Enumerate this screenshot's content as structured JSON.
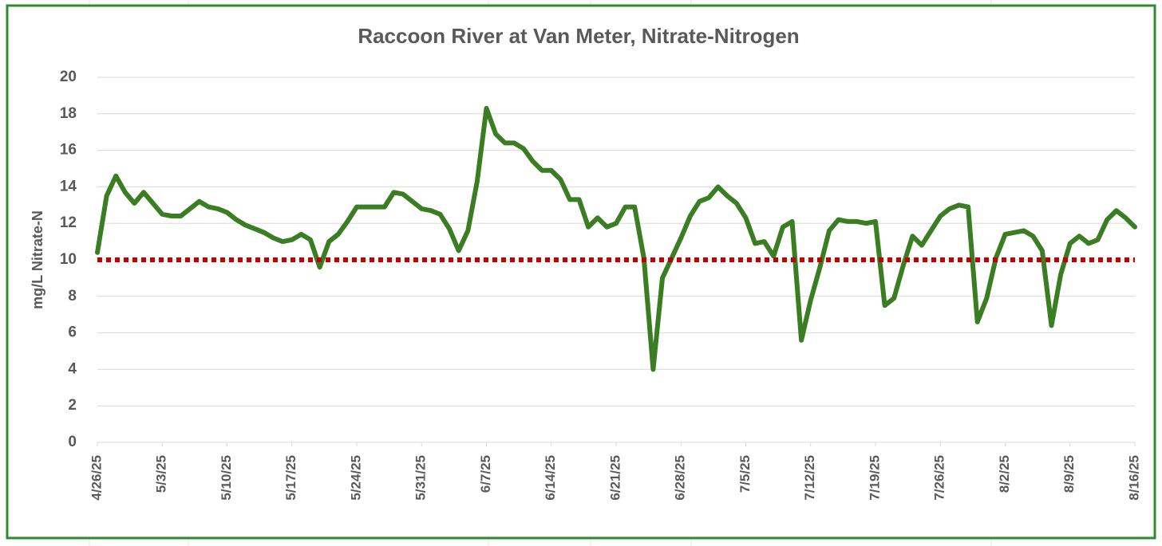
{
  "chart_data": {
    "type": "line",
    "title": "Raccoon River at Van Meter, Nitrate-Nitrogen",
    "y_label": "mg/L Nitrate-N",
    "x": [
      "4/26/25",
      "4/27/25",
      "4/28/25",
      "4/29/25",
      "4/30/25",
      "5/1/25",
      "5/2/25",
      "5/3/25",
      "5/4/25",
      "5/5/25",
      "5/6/25",
      "5/7/25",
      "5/8/25",
      "5/9/25",
      "5/10/25",
      "5/11/25",
      "5/12/25",
      "5/13/25",
      "5/14/25",
      "5/15/25",
      "5/16/25",
      "5/17/25",
      "5/18/25",
      "5/19/25",
      "5/20/25",
      "5/21/25",
      "5/22/25",
      "5/23/25",
      "5/24/25",
      "5/25/25",
      "5/26/25",
      "5/27/25",
      "5/28/25",
      "5/29/25",
      "5/30/25",
      "5/31/25",
      "6/1/25",
      "6/2/25",
      "6/3/25",
      "6/4/25",
      "6/5/25",
      "6/6/25",
      "6/7/25",
      "6/8/25",
      "6/9/25",
      "6/10/25",
      "6/11/25",
      "6/12/25",
      "6/13/25",
      "6/14/25",
      "6/15/25",
      "6/16/25",
      "6/17/25",
      "6/18/25",
      "6/19/25",
      "6/20/25",
      "6/21/25",
      "6/22/25",
      "6/23/25",
      "6/24/25",
      "6/25/25",
      "6/26/25",
      "6/27/25",
      "6/28/25",
      "6/29/25",
      "6/30/25",
      "7/1/25",
      "7/2/25",
      "7/3/25",
      "7/4/25",
      "7/5/25",
      "7/6/25",
      "7/7/25",
      "7/8/25",
      "7/9/25",
      "7/10/25",
      "7/11/25",
      "7/12/25",
      "7/13/25",
      "7/14/25",
      "7/15/25",
      "7/16/25",
      "7/17/25",
      "7/18/25",
      "7/19/25",
      "7/20/25",
      "7/21/25",
      "7/22/25",
      "7/23/25",
      "7/24/25",
      "7/25/25",
      "7/26/25",
      "7/27/25",
      "7/28/25",
      "7/29/25",
      "7/30/25",
      "7/31/25",
      "8/1/25",
      "8/2/25",
      "8/3/25",
      "8/4/25",
      "8/5/25",
      "8/6/25",
      "8/7/25",
      "8/8/25",
      "8/9/25",
      "8/10/25",
      "8/11/25",
      "8/12/25",
      "8/13/25",
      "8/14/25",
      "8/15/25",
      "8/16/25"
    ],
    "series": [
      {
        "name": "Nitrate-N",
        "color": "#3a7d22",
        "values": [
          10.4,
          13.5,
          14.6,
          13.7,
          13.1,
          13.7,
          13.1,
          12.5,
          12.4,
          12.4,
          12.8,
          13.2,
          12.9,
          12.8,
          12.6,
          12.2,
          11.9,
          11.7,
          11.5,
          11.2,
          11.0,
          11.1,
          11.4,
          11.1,
          9.6,
          11.0,
          11.4,
          12.1,
          12.9,
          12.9,
          12.9,
          12.9,
          13.7,
          13.6,
          13.2,
          12.8,
          12.7,
          12.5,
          11.7,
          10.5,
          11.6,
          14.3,
          18.3,
          16.9,
          16.4,
          16.4,
          16.1,
          15.4,
          14.9,
          14.9,
          14.4,
          13.3,
          13.3,
          11.8,
          12.3,
          11.8,
          12.0,
          12.9,
          12.9,
          10.1,
          4.0,
          9.0,
          10.1,
          11.2,
          12.4,
          13.2,
          13.4,
          14.0,
          13.5,
          13.1,
          12.3,
          10.9,
          11.0,
          10.2,
          11.8,
          12.1,
          5.6,
          7.8,
          9.6,
          11.6,
          12.2,
          12.1,
          12.1,
          12.0,
          12.1,
          7.5,
          7.9,
          9.7,
          11.3,
          10.8,
          11.6,
          12.4,
          12.8,
          13.0,
          12.9,
          6.6,
          7.9,
          10.1,
          11.4,
          11.5,
          11.6,
          11.3,
          10.5,
          6.4,
          9.2,
          10.9,
          11.3,
          10.9,
          11.1,
          12.2,
          12.7,
          12.3,
          11.8
        ]
      }
    ],
    "reference_line": {
      "value": 10,
      "color": "#c00000"
    },
    "xlim": [
      "4/26/25",
      "8/16/25"
    ],
    "xticks": [
      "4/26/25",
      "5/3/25",
      "5/10/25",
      "5/17/25",
      "5/24/25",
      "5/31/25",
      "6/7/25",
      "6/14/25",
      "6/21/25",
      "6/28/25",
      "7/5/25",
      "7/12/25",
      "7/19/25",
      "7/26/25",
      "8/2/25",
      "8/9/25",
      "8/16/25"
    ],
    "ylim": [
      0,
      20
    ],
    "yticks": [
      0,
      2,
      4,
      6,
      8,
      10,
      12,
      14,
      16,
      18,
      20
    ],
    "grid": true
  }
}
